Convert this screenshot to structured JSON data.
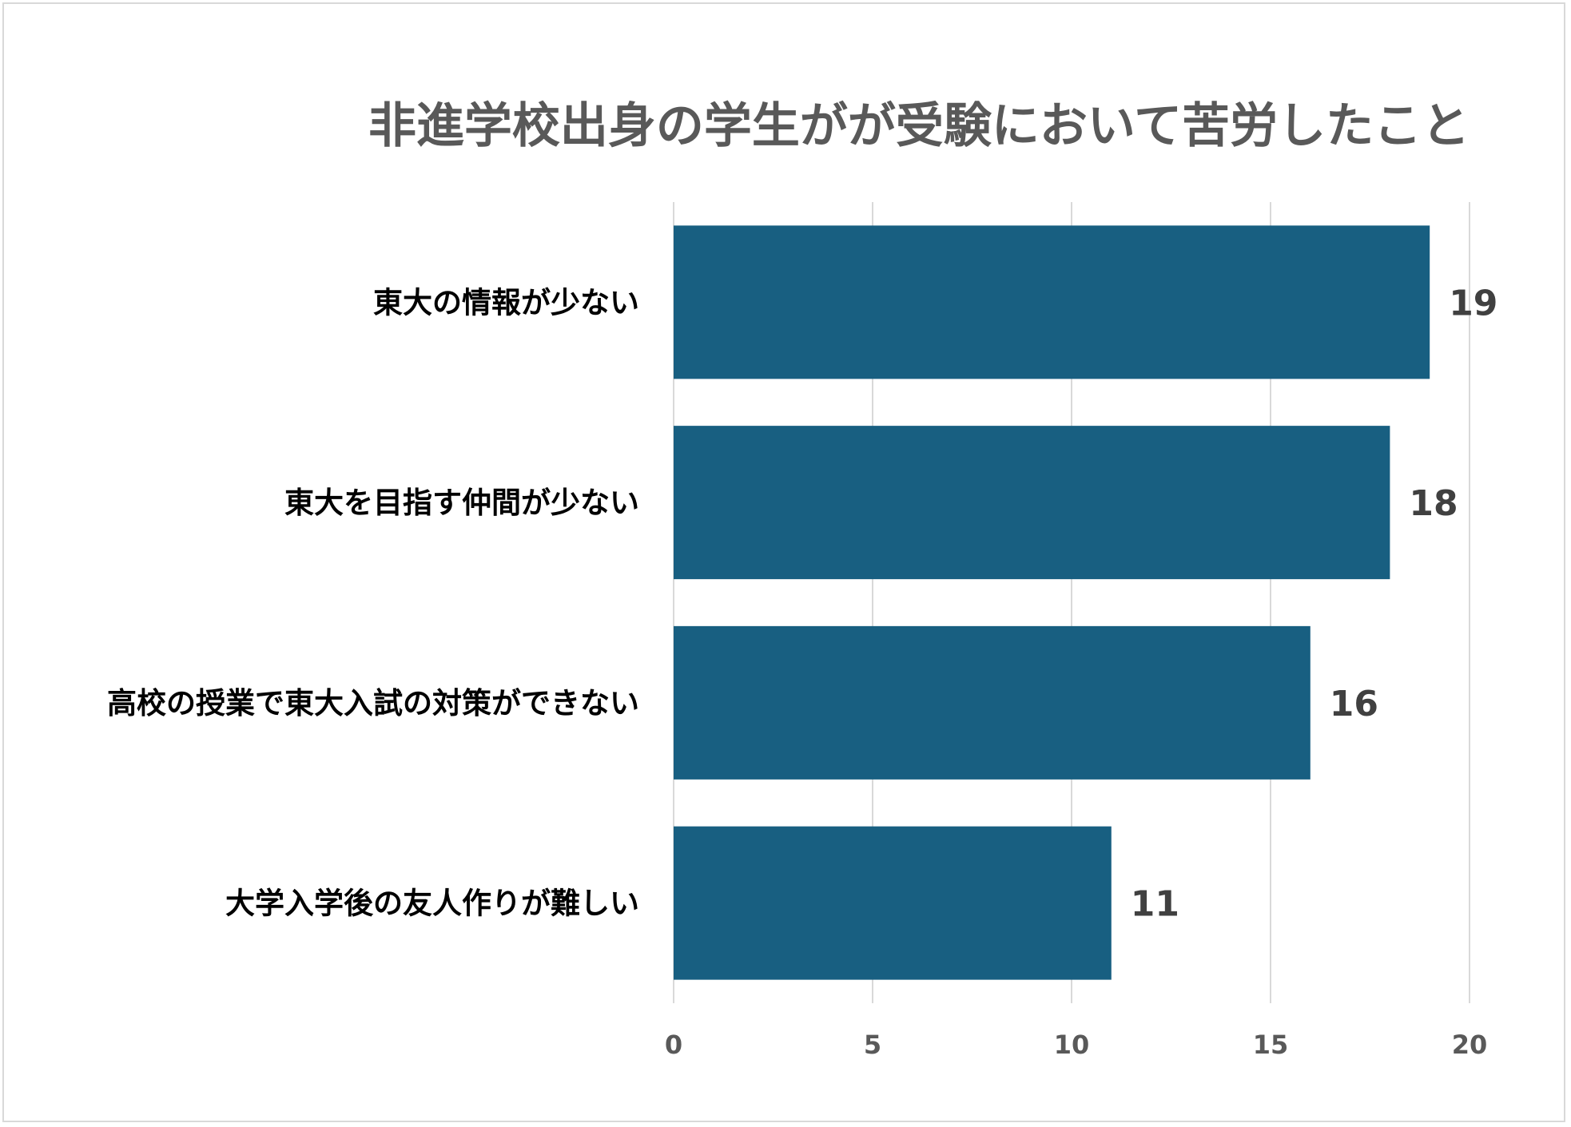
{
  "chart_data": {
    "type": "bar",
    "orientation": "horizontal",
    "title": "非進学校出身の学生がが受験において苦労したこと",
    "categories": [
      "東大の情報が少ない",
      "東大を目指す仲間が少ない",
      "高校の授業で東大入試の対策ができない",
      "大学入学後の友人作りが難しい"
    ],
    "values": [
      19,
      18,
      16,
      11
    ],
    "xlabel": "",
    "ylabel": "",
    "xlim": [
      0,
      20
    ],
    "x_ticks": [
      "0",
      "5",
      "10",
      "15",
      "20"
    ],
    "grid": "vertical",
    "legend": "none",
    "data_labels": [
      "19",
      "18",
      "16",
      "11"
    ],
    "colors": {
      "bar": "#185f81",
      "gridline": "#d9d9d9",
      "title": "#595959",
      "border": "#d9d9d9"
    }
  }
}
